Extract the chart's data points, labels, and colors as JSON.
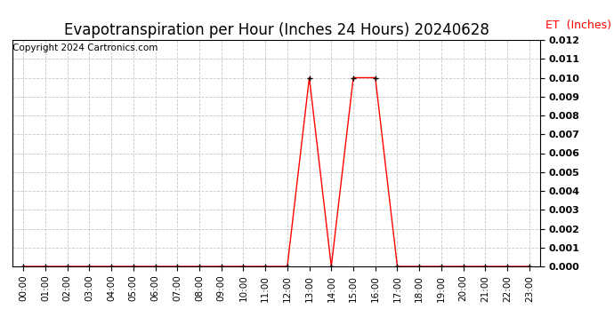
{
  "title": "Evapotranspiration per Hour (Inches 24 Hours) 20240628",
  "copyright": "Copyright 2024 Cartronics.com",
  "legend_label": "ET  (Inches)",
  "legend_color": "#ff0000",
  "line_color": "#ff0000",
  "marker_color": "#000000",
  "bg_color": "#ffffff",
  "grid_color": "#c8c8c8",
  "ylim": [
    0,
    0.012
  ],
  "yticks": [
    0.0,
    0.001,
    0.002,
    0.003,
    0.004,
    0.005,
    0.006,
    0.007,
    0.008,
    0.009,
    0.01,
    0.011,
    0.012
  ],
  "hours": [
    0,
    1,
    2,
    3,
    4,
    5,
    6,
    7,
    8,
    9,
    10,
    11,
    12,
    13,
    14,
    15,
    16,
    17,
    18,
    19,
    20,
    21,
    22,
    23
  ],
  "et_values": [
    0.0,
    0.0,
    0.0,
    0.0,
    0.0,
    0.0,
    0.0,
    0.0,
    0.0,
    0.0,
    0.0,
    0.0,
    0.0,
    0.01,
    0.0,
    0.01,
    0.01,
    0.0,
    0.0,
    0.0,
    0.0,
    0.0,
    0.0,
    0.0
  ],
  "title_fontsize": 12,
  "tick_fontsize": 7.5,
  "legend_fontsize": 9,
  "copyright_fontsize": 7.5,
  "ytick_fontsize": 8,
  "ytick_fontweight": "bold"
}
